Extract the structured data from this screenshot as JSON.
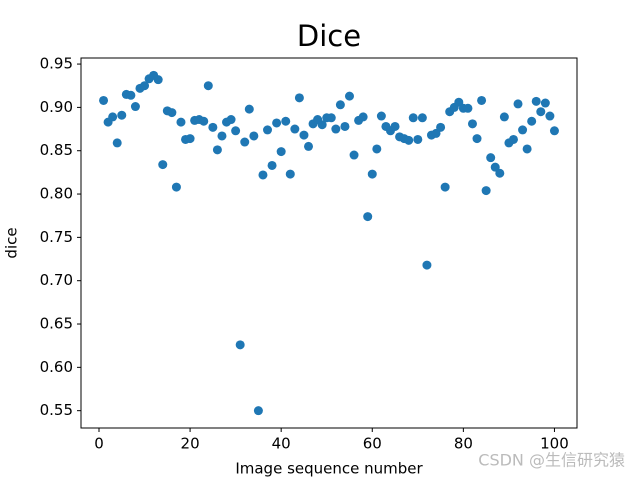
{
  "chart_data": {
    "type": "scatter",
    "title": "Dice",
    "xlabel": "Image sequence number",
    "ylabel": "dice",
    "watermark": "CSDN @生信研究猿",
    "x": [
      1,
      2,
      3,
      4,
      5,
      6,
      7,
      8,
      9,
      10,
      11,
      12,
      13,
      14,
      15,
      16,
      17,
      18,
      19,
      20,
      21,
      22,
      23,
      24,
      25,
      26,
      27,
      28,
      29,
      30,
      31,
      32,
      33,
      34,
      35,
      36,
      37,
      38,
      39,
      40,
      41,
      42,
      43,
      44,
      45,
      46,
      47,
      48,
      49,
      50,
      51,
      52,
      53,
      54,
      55,
      56,
      57,
      58,
      59,
      60,
      61,
      62,
      63,
      64,
      65,
      66,
      67,
      68,
      69,
      70,
      71,
      72,
      73,
      74,
      75,
      76,
      77,
      78,
      79,
      80,
      81,
      82,
      83,
      84,
      85,
      86,
      87,
      88,
      89,
      90,
      91,
      92,
      93,
      94,
      95,
      96,
      97,
      98,
      99,
      100
    ],
    "series": [
      {
        "name": "dice",
        "color": "#1f77b4",
        "values": [
          0.908,
          0.883,
          0.889,
          0.859,
          0.891,
          0.915,
          0.914,
          0.901,
          0.922,
          0.925,
          0.933,
          0.937,
          0.932,
          0.834,
          0.896,
          0.894,
          0.808,
          0.883,
          0.863,
          0.864,
          0.885,
          0.886,
          0.884,
          0.925,
          0.877,
          0.851,
          0.867,
          0.883,
          0.886,
          0.873,
          0.626,
          0.86,
          0.898,
          0.867,
          0.55,
          0.822,
          0.874,
          0.833,
          0.882,
          0.849,
          0.884,
          0.823,
          0.875,
          0.911,
          0.868,
          0.855,
          0.881,
          0.886,
          0.88,
          0.888,
          0.888,
          0.875,
          0.903,
          0.878,
          0.913,
          0.845,
          0.885,
          0.889,
          0.774,
          0.823,
          0.852,
          0.89,
          0.878,
          0.873,
          0.878,
          0.866,
          0.864,
          0.862,
          0.888,
          0.863,
          0.888,
          0.718,
          0.868,
          0.87,
          0.877,
          0.808,
          0.895,
          0.9,
          0.906,
          0.899,
          0.899,
          0.881,
          0.864,
          0.908,
          0.804,
          0.842,
          0.831,
          0.824,
          0.889,
          0.859,
          0.863,
          0.904,
          0.874,
          0.852,
          0.884,
          0.907,
          0.895,
          0.905,
          0.89,
          0.873
        ]
      }
    ],
    "xlim": [
      -3.95,
      104.95
    ],
    "xticks": [
      0,
      20,
      40,
      60,
      80,
      100
    ],
    "ylim": [
      0.53,
      0.957
    ],
    "yticks": [
      0.55,
      {
        "value": 0.6,
        "label": "0.60"
      },
      0.65,
      {
        "value": 0.7,
        "label": "0.70"
      },
      0.75,
      {
        "value": 0.8,
        "label": "0.80"
      },
      0.85,
      {
        "value": 0.9,
        "label": "0.90"
      },
      0.95
    ],
    "grid": false
  }
}
